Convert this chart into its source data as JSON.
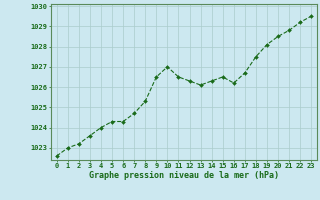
{
  "x": [
    0,
    1,
    2,
    3,
    4,
    5,
    6,
    7,
    8,
    9,
    10,
    11,
    12,
    13,
    14,
    15,
    16,
    17,
    18,
    19,
    20,
    21,
    22,
    23
  ],
  "y": [
    1022.6,
    1023.0,
    1023.2,
    1023.6,
    1024.0,
    1024.3,
    1024.3,
    1024.7,
    1025.3,
    1026.5,
    1027.0,
    1026.5,
    1026.3,
    1026.1,
    1026.3,
    1026.5,
    1026.2,
    1026.7,
    1027.5,
    1028.1,
    1028.5,
    1028.8,
    1029.2,
    1029.5
  ],
  "ylim_min": 1022.4,
  "ylim_max": 1030.1,
  "yticks": [
    1023,
    1024,
    1025,
    1026,
    1027,
    1028,
    1029,
    1030
  ],
  "xticks": [
    0,
    1,
    2,
    3,
    4,
    5,
    6,
    7,
    8,
    9,
    10,
    11,
    12,
    13,
    14,
    15,
    16,
    17,
    18,
    19,
    20,
    21,
    22,
    23
  ],
  "line_color": "#1a6b1a",
  "marker_color": "#1a6b1a",
  "bg_color": "#cce8f0",
  "grid_color": "#aacccc",
  "xlabel": "Graphe pression niveau de la mer (hPa)",
  "xlabel_color": "#1a6b1a",
  "tick_color": "#1a6b1a",
  "border_color": "#5a8a5a",
  "markersize": 2.0,
  "linewidth": 0.8,
  "tick_fontsize": 5.0,
  "xlabel_fontsize": 6.0
}
